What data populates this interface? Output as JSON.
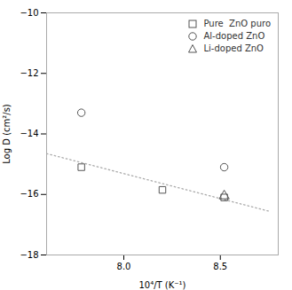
{
  "chart_data": {
    "type": "scatter",
    "xlabel": "10⁴/T (K⁻¹)",
    "ylabel": "Log D (cm²/s)",
    "xlim": [
      7.6,
      8.8
    ],
    "ylim": [
      -18,
      -10
    ],
    "xticks": [
      {
        "value": 8.0,
        "label": "8.0"
      },
      8.5
    ],
    "yticks": [
      -18,
      -16,
      -14,
      -12,
      -10
    ],
    "legend": "upper right",
    "series": [
      {
        "type": "line",
        "x": [
          7.6,
          8.75
        ],
        "values": [
          -14.65,
          -16.55
        ],
        "color": "#aaaaaa",
        "line_style": "dotted"
      },
      {
        "name": "Pure  ZnO puro",
        "type": "scatter",
        "marker": "square",
        "color": "#555555",
        "x": [
          7.78,
          8.2,
          8.52
        ],
        "values": [
          -15.1,
          -15.85,
          -16.1
        ]
      },
      {
        "name": "Al-doped ZnO",
        "type": "scatter",
        "marker": "circle",
        "color": "#555555",
        "x": [
          7.78,
          8.52
        ],
        "values": [
          -13.3,
          -15.1
        ]
      },
      {
        "name": "Li-doped ZnO",
        "type": "scatter",
        "marker": "triangle",
        "color": "#555555",
        "x": [
          8.52
        ],
        "values": [
          -16.05
        ]
      }
    ]
  }
}
